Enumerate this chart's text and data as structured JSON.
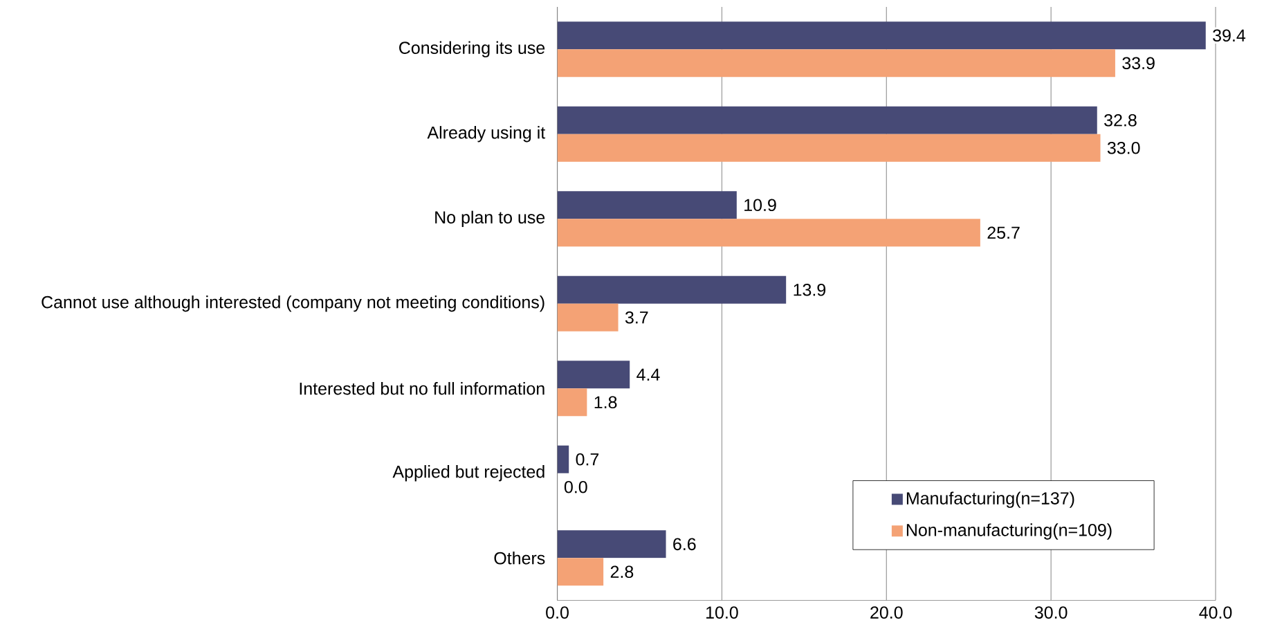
{
  "chart_data": {
    "type": "bar",
    "orientation": "horizontal",
    "categories": [
      "Considering its use",
      "Already using it",
      "No plan to use",
      "Cannot use although interested (company not meeting conditions)",
      "Interested but no full information",
      "Applied but rejected",
      "Others"
    ],
    "series": [
      {
        "name": "Manufacturing(n=137)",
        "color": "#474a76",
        "values": [
          39.4,
          32.8,
          10.9,
          13.9,
          4.4,
          0.7,
          6.6
        ],
        "value_labels": [
          "39.4",
          "32.8",
          "10.9",
          "13.9",
          "4.4",
          "0.7",
          "6.6"
        ]
      },
      {
        "name": "Non-manufacturing(n=109)",
        "color": "#f4a275",
        "values": [
          33.9,
          33.0,
          25.7,
          3.7,
          1.8,
          0.0,
          2.8
        ],
        "value_labels": [
          "33.9",
          "33.0",
          "25.7",
          "3.7",
          "1.8",
          "0.0",
          "2.8"
        ]
      }
    ],
    "xlim": [
      0,
      40
    ],
    "xticks": [
      {
        "value": 0,
        "label": "0.0"
      },
      {
        "value": 10,
        "label": "10.0"
      },
      {
        "value": 20,
        "label": "20.0"
      },
      {
        "value": 30,
        "label": "30.0"
      },
      {
        "value": 40,
        "label": "40.0"
      }
    ],
    "grid": "x",
    "legend": "bottom right"
  }
}
